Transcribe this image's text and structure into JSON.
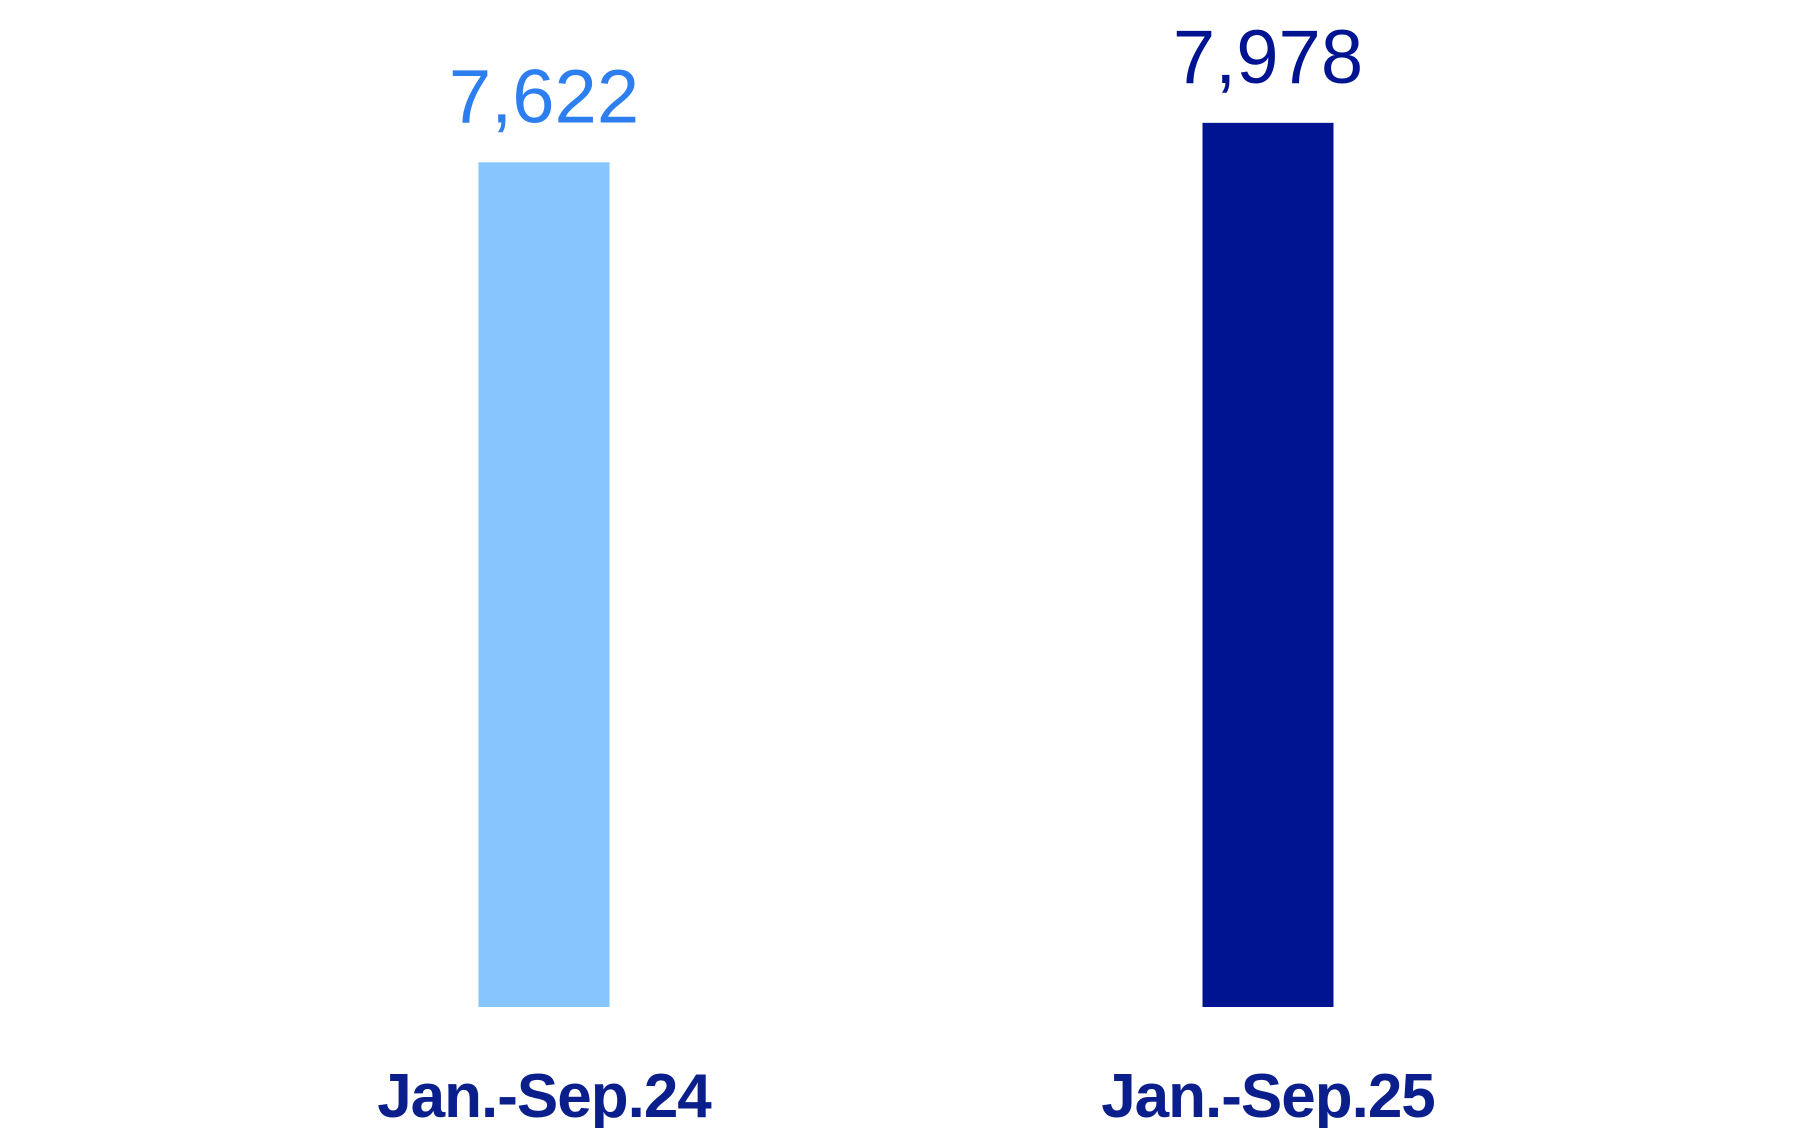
{
  "chart_data": {
    "type": "bar",
    "categories": [
      "Jan.-Sep.24",
      "Jan.-Sep.25"
    ],
    "values": [
      7622,
      7978
    ],
    "value_labels": [
      "7,622",
      "7,978"
    ],
    "title": "",
    "xlabel": "",
    "ylabel": "",
    "ylim": [
      0,
      8500
    ],
    "grid": false,
    "colors": {
      "bars": [
        "#87C5FF",
        "#001391"
      ],
      "value_labels": [
        "#2D7FF0",
        "#001391"
      ],
      "category_labels": "#0A1E8C"
    }
  }
}
